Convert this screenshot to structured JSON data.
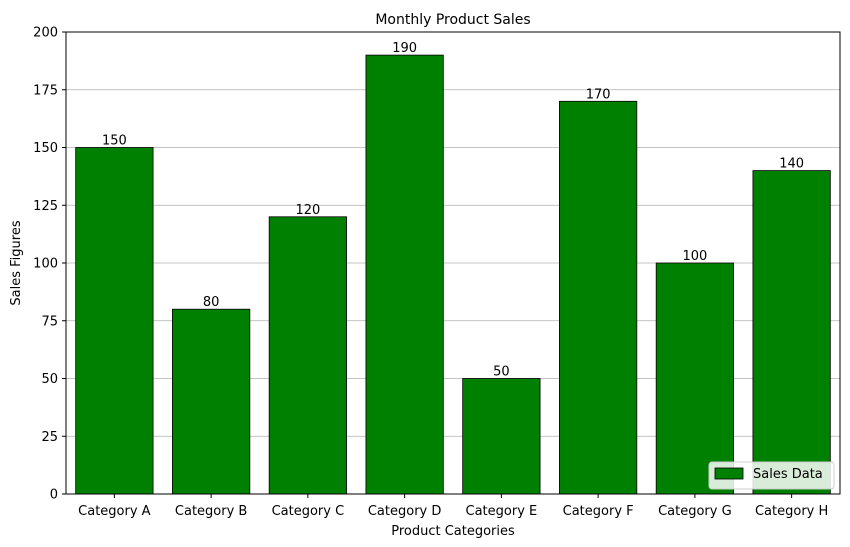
{
  "chart_data": {
    "type": "bar",
    "title": "Monthly Product Sales",
    "xlabel": "Product Categories",
    "ylabel": "Sales Figures",
    "categories": [
      "Category A",
      "Category B",
      "Category C",
      "Category D",
      "Category E",
      "Category F",
      "Category G",
      "Category H"
    ],
    "series": [
      {
        "name": "Sales Data",
        "values": [
          150,
          80,
          120,
          190,
          50,
          170,
          100,
          140
        ],
        "color": "#008000"
      }
    ],
    "ylim": [
      0,
      200
    ],
    "yticks": [
      0,
      25,
      50,
      75,
      100,
      125,
      150,
      175,
      200
    ],
    "grid": {
      "y": true,
      "x": false,
      "color": "#b0b0b0"
    },
    "bar_edge_color": "#000000",
    "data_labels": true,
    "legend": {
      "position": "bottom-right"
    }
  }
}
